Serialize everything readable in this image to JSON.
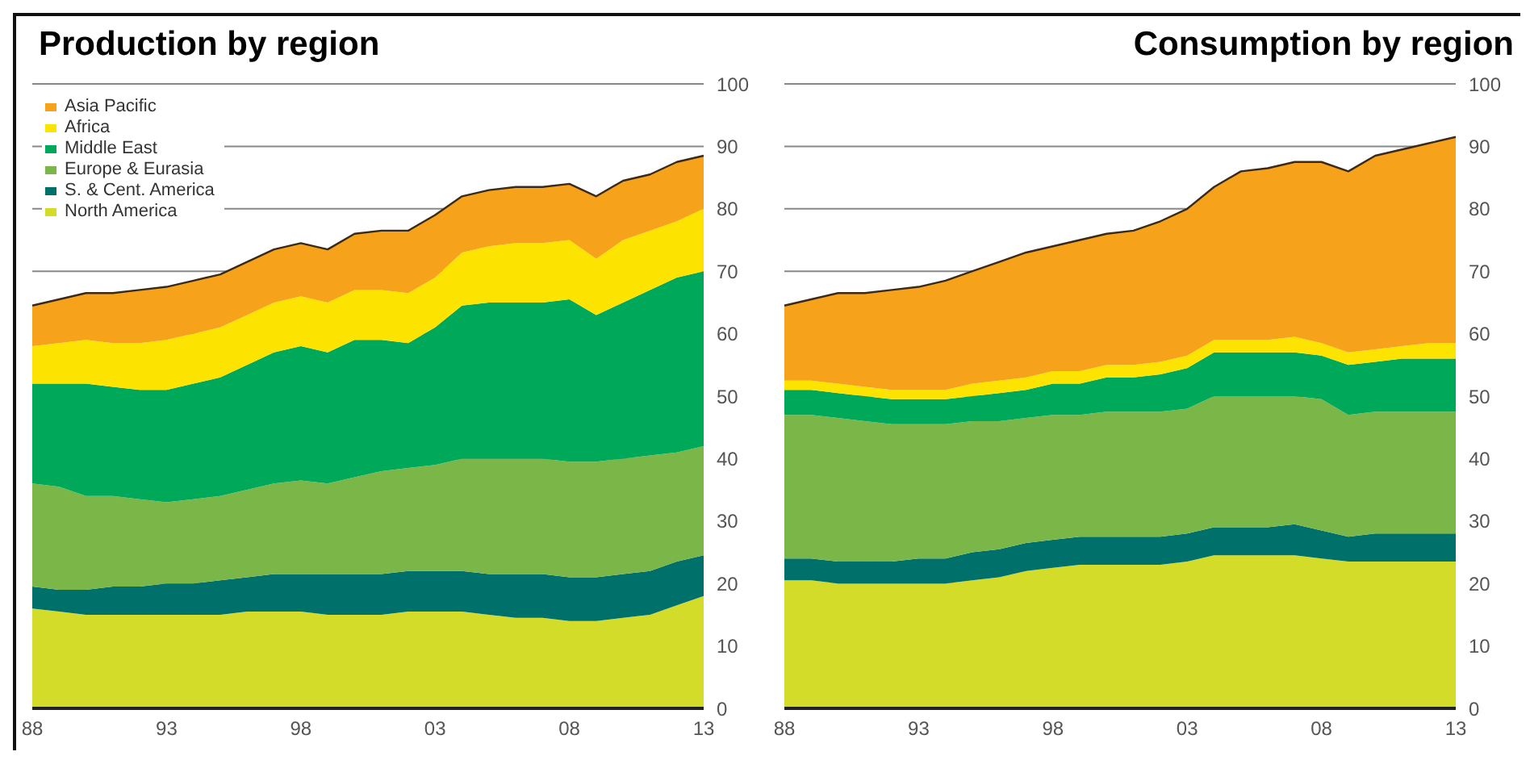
{
  "chart_data": [
    {
      "type": "area",
      "title": "Production by region",
      "stacked": true,
      "legend": "top left",
      "grid": "y",
      "categories": [
        "88",
        null,
        null,
        null,
        null,
        "93",
        null,
        null,
        null,
        null,
        "98",
        null,
        null,
        null,
        null,
        "03",
        null,
        null,
        null,
        null,
        "08",
        null,
        null,
        null,
        null,
        "13"
      ],
      "ylim": [
        0,
        100
      ],
      "yticks": [
        0,
        10,
        20,
        30,
        40,
        50,
        60,
        70,
        80,
        90,
        100
      ],
      "series": [
        {
          "name": "North America",
          "color": "#d4dc2a",
          "values": [
            16,
            15.5,
            15,
            15,
            15,
            15,
            15,
            15,
            15.5,
            15.5,
            15.5,
            15,
            15,
            15,
            15.5,
            15.5,
            15.5,
            15,
            14.5,
            14.5,
            14,
            14,
            14.5,
            15,
            16.5,
            18
          ]
        },
        {
          "name": "S. & Cent. America",
          "color": "#00706a",
          "values": [
            3.5,
            3.5,
            4,
            4.5,
            4.5,
            5,
            5,
            5.5,
            5.5,
            6,
            6,
            6.5,
            6.5,
            6.5,
            6.5,
            6.5,
            6.5,
            6.5,
            7,
            7,
            7,
            7,
            7,
            7,
            7,
            6.5
          ]
        },
        {
          "name": "Europe & Eurasia",
          "color": "#7ab648",
          "values": [
            16.5,
            16.5,
            15,
            14.5,
            14,
            13,
            13.5,
            13.5,
            14,
            14.5,
            15,
            14.5,
            15.5,
            16.5,
            16.5,
            17,
            18,
            18.5,
            18.5,
            18.5,
            18.5,
            18.5,
            18.5,
            18.5,
            17.5,
            17.5
          ]
        },
        {
          "name": "Middle East",
          "color": "#00a85a",
          "values": [
            16,
            16.5,
            18,
            17.5,
            17.5,
            18,
            18.5,
            19,
            20,
            21,
            21.5,
            21,
            22,
            21,
            20,
            22,
            24.5,
            25,
            25,
            25,
            26,
            23.5,
            25,
            26.5,
            28,
            28
          ]
        },
        {
          "name": "Africa",
          "color": "#fce300",
          "values": [
            6,
            6.5,
            7,
            7,
            7.5,
            8,
            8,
            8,
            8,
            8,
            8,
            8,
            8,
            8,
            8,
            8,
            8.5,
            9,
            9.5,
            9.5,
            9.5,
            9,
            10,
            9.5,
            9,
            10
          ]
        },
        {
          "name": "Asia Pacific",
          "color": "#f7a21b",
          "values": [
            6.5,
            7,
            7.5,
            8,
            8.5,
            8.5,
            8.5,
            8.5,
            8.5,
            8.5,
            8.5,
            8.5,
            9,
            9.5,
            10,
            10,
            9,
            9,
            9,
            9,
            9,
            10,
            9.5,
            9,
            9.5,
            8.5
          ]
        }
      ]
    },
    {
      "type": "area",
      "title": "Consumption by region",
      "stacked": true,
      "grid": "y",
      "categories": [
        "88",
        null,
        null,
        null,
        null,
        "93",
        null,
        null,
        null,
        null,
        "98",
        null,
        null,
        null,
        null,
        "03",
        null,
        null,
        null,
        null,
        "08",
        null,
        null,
        null,
        null,
        "13"
      ],
      "ylim": [
        0,
        100
      ],
      "yticks": [
        0,
        10,
        20,
        30,
        40,
        50,
        60,
        70,
        80,
        90,
        100
      ],
      "series": [
        {
          "color": "#d4dc2a",
          "values": [
            20.5,
            20.5,
            20,
            20,
            20,
            20,
            20,
            20.5,
            21,
            22,
            22.5,
            23,
            23,
            23,
            23,
            23.5,
            24.5,
            24.5,
            24.5,
            24.5,
            24,
            23.5,
            23.5,
            23.5,
            23.5,
            23.5
          ]
        },
        {
          "color": "#00706a",
          "values": [
            3.5,
            3.5,
            3.5,
            3.5,
            3.5,
            4,
            4,
            4.5,
            4.5,
            4.5,
            4.5,
            4.5,
            4.5,
            4.5,
            4.5,
            4.5,
            4.5,
            4.5,
            4.5,
            5,
            4.5,
            4,
            4.5,
            4.5,
            4.5,
            4.5
          ]
        },
        {
          "color": "#7ab648",
          "values": [
            23,
            23,
            23,
            22.5,
            22,
            21.5,
            21.5,
            21,
            20.5,
            20,
            20,
            19.5,
            20,
            20,
            20,
            20,
            21,
            21,
            21,
            20.5,
            21,
            19.5,
            19.5,
            19.5,
            19.5,
            19.5
          ]
        },
        {
          "color": "#00a85a",
          "values": [
            4,
            4,
            4,
            4,
            4,
            4,
            4,
            4,
            4.5,
            4.5,
            5,
            5,
            5.5,
            5.5,
            6,
            6.5,
            7,
            7,
            7,
            7,
            7,
            8,
            8,
            8.5,
            8.5,
            8.5
          ]
        },
        {
          "color": "#fce300",
          "values": [
            1.5,
            1.5,
            1.5,
            1.5,
            1.5,
            1.5,
            1.5,
            2,
            2,
            2,
            2,
            2,
            2,
            2,
            2,
            2,
            2,
            2,
            2,
            2.5,
            2,
            2,
            2,
            2,
            2.5,
            2.5
          ]
        },
        {
          "color": "#f7a21b",
          "values": [
            12,
            13,
            14.5,
            15,
            16,
            16.5,
            17.5,
            18,
            19,
            20,
            20,
            21,
            21,
            21.5,
            22.5,
            23.5,
            24.5,
            27,
            27.5,
            28,
            29,
            29,
            31,
            31.5,
            32,
            33
          ]
        }
      ]
    }
  ]
}
